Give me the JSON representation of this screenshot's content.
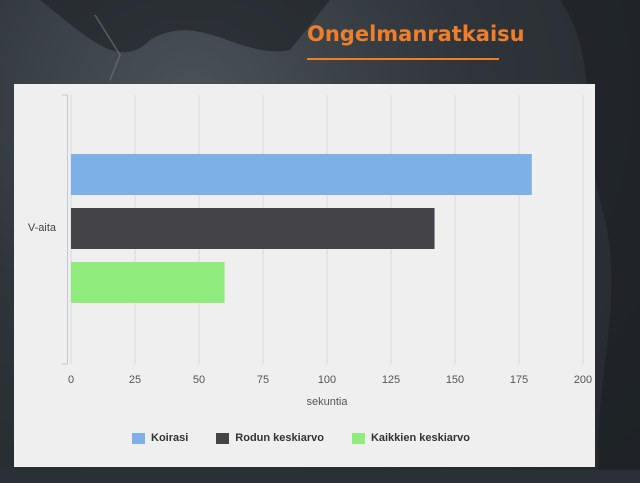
{
  "page": {
    "title": "Ongelmanratkaisu",
    "accent_color": "#f07d2a"
  },
  "chart_data": {
    "type": "bar",
    "orientation": "horizontal",
    "categories": [
      "V-aita"
    ],
    "series": [
      {
        "name": "Koirasi",
        "values": [
          180
        ],
        "color": "#7cb0e6"
      },
      {
        "name": "Rodun keskiarvo",
        "values": [
          142
        ],
        "color": "#434348"
      },
      {
        "name": "Kaikkien keskiarvo",
        "values": [
          60
        ],
        "color": "#90ed7d"
      }
    ],
    "xlabel": "sekuntia",
    "ylabel": "",
    "xlim": [
      0,
      200
    ],
    "ticks": [
      0,
      25,
      50,
      75,
      100,
      125,
      150,
      175,
      200
    ],
    "grid": true,
    "legend_position": "bottom"
  }
}
